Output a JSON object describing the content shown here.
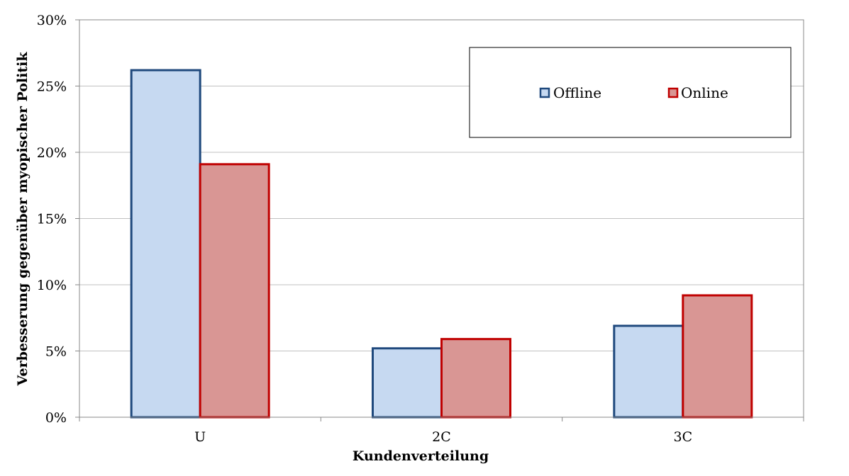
{
  "chart_data": {
    "type": "bar",
    "title": "",
    "xlabel": "Kundenverteilung",
    "ylabel": "Verbesserung gegenüber myopischer Politik",
    "categories": [
      "U",
      "2C",
      "3C"
    ],
    "series": [
      {
        "name": "Offline",
        "values": [
          26.2,
          5.2,
          6.9
        ],
        "fill": "#c6d9f1",
        "stroke": "#1f497d"
      },
      {
        "name": "Online",
        "values": [
          19.1,
          5.9,
          9.2
        ],
        "fill": "#d99694",
        "stroke": "#c00000"
      }
    ],
    "ylim": [
      0,
      30
    ],
    "yticks": [
      "0%",
      "5%",
      "10%",
      "15%",
      "20%",
      "25%",
      "30%"
    ],
    "grid": true,
    "legend_position": "top-right"
  }
}
